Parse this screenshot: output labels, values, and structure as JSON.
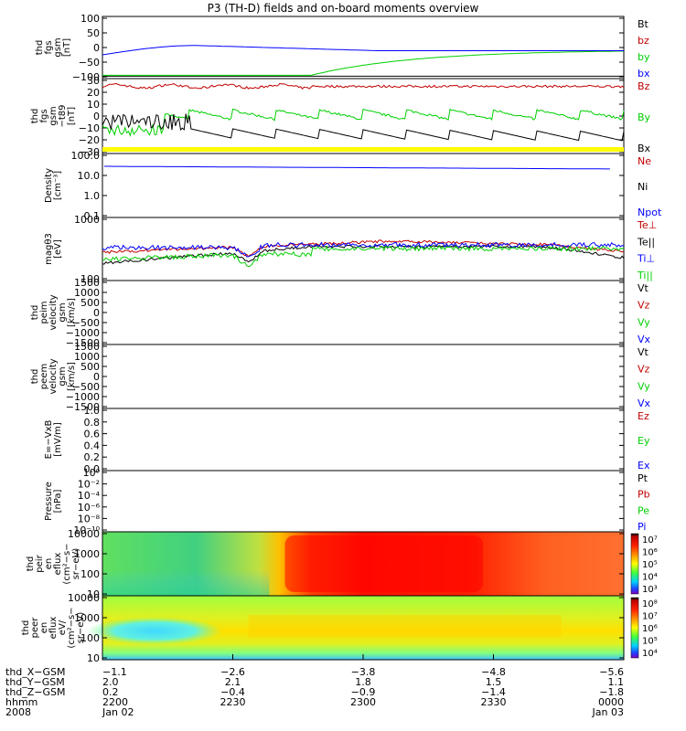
{
  "title": "P3 (TH-D) fields and on-board moments overview",
  "colors": {
    "black": "#000000",
    "red": "#c00000",
    "green": "#00d000",
    "blue": "#0000ff",
    "yellow": "#ffff00"
  },
  "chart_data": [
    {
      "type": "line",
      "ylabel": [
        "thd",
        "fgs",
        "gsm",
        "[nT]"
      ],
      "yticks": [
        "100",
        "50",
        "0",
        "−50",
        "−100"
      ],
      "ylim": [
        -100,
        100
      ],
      "legend": [
        {
          "text": "Bt",
          "color": "black"
        },
        {
          "text": "bz",
          "color": "red"
        },
        {
          "text": "by",
          "color": "green"
        },
        {
          "text": "bx",
          "color": "blue"
        }
      ]
    },
    {
      "type": "line",
      "ylabel": [
        "thd",
        "fgs",
        "gsm",
        "−t89",
        "[nT]"
      ],
      "yticks": [
        "30",
        "20",
        "10",
        "0",
        "−10",
        "−20",
        "−30"
      ],
      "ylim": [
        -30,
        30
      ],
      "legend": [
        {
          "text": "Bz",
          "color": "red"
        },
        {
          "text": "By",
          "color": "green"
        },
        {
          "text": "Bx",
          "color": "black"
        }
      ]
    },
    {
      "type": "line",
      "ylabel": [
        "Density",
        "[cm⁻³]"
      ],
      "yticks": [
        "100.0",
        "10.0",
        "1.0",
        "0.1"
      ],
      "scale": "log",
      "legend": [
        {
          "text": "Ne",
          "color": "red"
        },
        {
          "text": "Ni",
          "color": "black"
        },
        {
          "text": "Npot",
          "color": "blue"
        }
      ]
    },
    {
      "type": "line",
      "ylabel": [
        "magθ3",
        "[eV]"
      ],
      "yticks": [
        "1000",
        "100"
      ],
      "scale": "log",
      "legend": [
        {
          "text": "Te⊥",
          "color": "red"
        },
        {
          "text": "Te||",
          "color": "black"
        },
        {
          "text": "Ti⊥",
          "color": "blue"
        },
        {
          "text": "Ti||",
          "color": "green"
        }
      ]
    },
    {
      "type": "line",
      "ylabel": [
        "thd",
        "peim",
        "velocity",
        "gsm",
        "[km/s]"
      ],
      "yticks": [
        "1500",
        "1000",
        "500",
        "0",
        "−500",
        "−1000",
        "−1500"
      ],
      "ylim": [
        -1500,
        1500
      ],
      "legend": [
        {
          "text": "Vt",
          "color": "black"
        },
        {
          "text": "Vz",
          "color": "red"
        },
        {
          "text": "Vy",
          "color": "green"
        },
        {
          "text": "Vx",
          "color": "blue"
        }
      ]
    },
    {
      "type": "line",
      "ylabel": [
        "thd",
        "peem",
        "velocity",
        "gsm",
        "[km/s]"
      ],
      "yticks": [
        "1500",
        "1000",
        "500",
        "0",
        "−500",
        "−1000",
        "−1500"
      ],
      "ylim": [
        -1500,
        1500
      ],
      "legend": [
        {
          "text": "Vt",
          "color": "black"
        },
        {
          "text": "Vz",
          "color": "red"
        },
        {
          "text": "Vy",
          "color": "green"
        },
        {
          "text": "Vx",
          "color": "blue"
        }
      ]
    },
    {
      "type": "line",
      "ylabel": [
        "E=−VxB",
        "[mV/m]"
      ],
      "yticks": [
        "1.0",
        "0.8",
        "0.6",
        "0.4",
        "0.2",
        "0.0"
      ],
      "ylim": [
        0,
        1
      ],
      "legend": [
        {
          "text": "Ez",
          "color": "red"
        },
        {
          "text": "Ey",
          "color": "green"
        },
        {
          "text": "Ex",
          "color": "blue"
        }
      ]
    },
    {
      "type": "line",
      "ylabel": [
        "Pressure",
        "[nPa]"
      ],
      "yticks": [
        "10⁰",
        "10⁻²",
        "10⁻⁴",
        "10⁻⁶",
        "10⁻⁸",
        "10⁻¹⁰"
      ],
      "scale": "log",
      "legend": [
        {
          "text": "Pt",
          "color": "black"
        },
        {
          "text": "Pb",
          "color": "red"
        },
        {
          "text": "Pe",
          "color": "green"
        },
        {
          "text": "Pi",
          "color": "blue"
        }
      ]
    },
    {
      "type": "heatmap",
      "ylabel": [
        "thd",
        "peir",
        "en",
        "eflux",
        "(cm²−s−",
        "sr−eV)"
      ],
      "yticks": [
        "10000",
        "1000",
        "100",
        "10"
      ],
      "scale": "log",
      "colorbar_ticks": [
        "10⁷",
        "10⁶",
        "10⁵",
        "10⁴",
        "10³"
      ]
    },
    {
      "type": "heatmap",
      "ylabel": [
        "thd",
        "peer",
        "en",
        "eflux",
        "eV/",
        "(cm²−s−",
        "sr−eV)"
      ],
      "yticks": [
        "10000",
        "1000",
        "100",
        "10"
      ],
      "scale": "log",
      "colorbar_ticks": [
        "10⁸",
        "10⁷",
        "10⁶",
        "10⁵",
        "10⁴"
      ]
    }
  ],
  "x_axis": {
    "row_labels": [
      "thd_X−GSM",
      "thd_Y−GSM",
      "thd_Z−GSM",
      "hhmm",
      "2008"
    ],
    "columns": [
      {
        "values": [
          "−1.1",
          "2.0",
          "0.2",
          "2200",
          "Jan 02"
        ]
      },
      {
        "values": [
          "−2.6",
          "2.1",
          "−0.4",
          "2230",
          ""
        ]
      },
      {
        "values": [
          "−3.8",
          "1.8",
          "−0.9",
          "2300",
          ""
        ]
      },
      {
        "values": [
          "−4.8",
          "1.5",
          "−1.4",
          "2330",
          ""
        ]
      },
      {
        "values": [
          "−5.6",
          "1.1",
          "−1.8",
          "0000",
          "Jan 03"
        ]
      }
    ]
  }
}
